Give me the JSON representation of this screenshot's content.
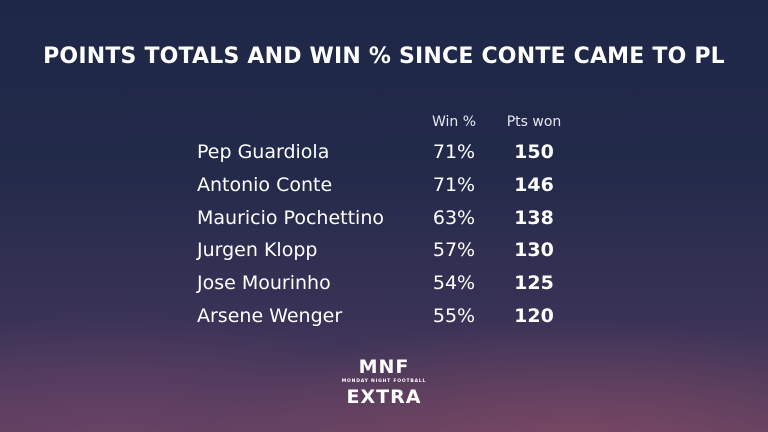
{
  "title": "POINTS TOTALS AND WIN % SINCE CONTE CAME TO PL",
  "columns": {
    "win": "Win %",
    "pts": "Pts won"
  },
  "rows": [
    {
      "name": "Pep Guardiola",
      "win": "71%",
      "pts": "150"
    },
    {
      "name": "Antonio Conte",
      "win": "71%",
      "pts": "146"
    },
    {
      "name": "Mauricio Pochettino",
      "win": "63%",
      "pts": "138"
    },
    {
      "name": "Jurgen Klopp",
      "win": "57%",
      "pts": "130"
    },
    {
      "name": "Jose Mourinho",
      "win": "54%",
      "pts": "125"
    },
    {
      "name": "Arsene Wenger",
      "win": "55%",
      "pts": "120"
    }
  ],
  "logo": {
    "line1": "MNF",
    "line2": "MONDAY NIGHT FOOTBALL",
    "line3": "EXTRA"
  }
}
